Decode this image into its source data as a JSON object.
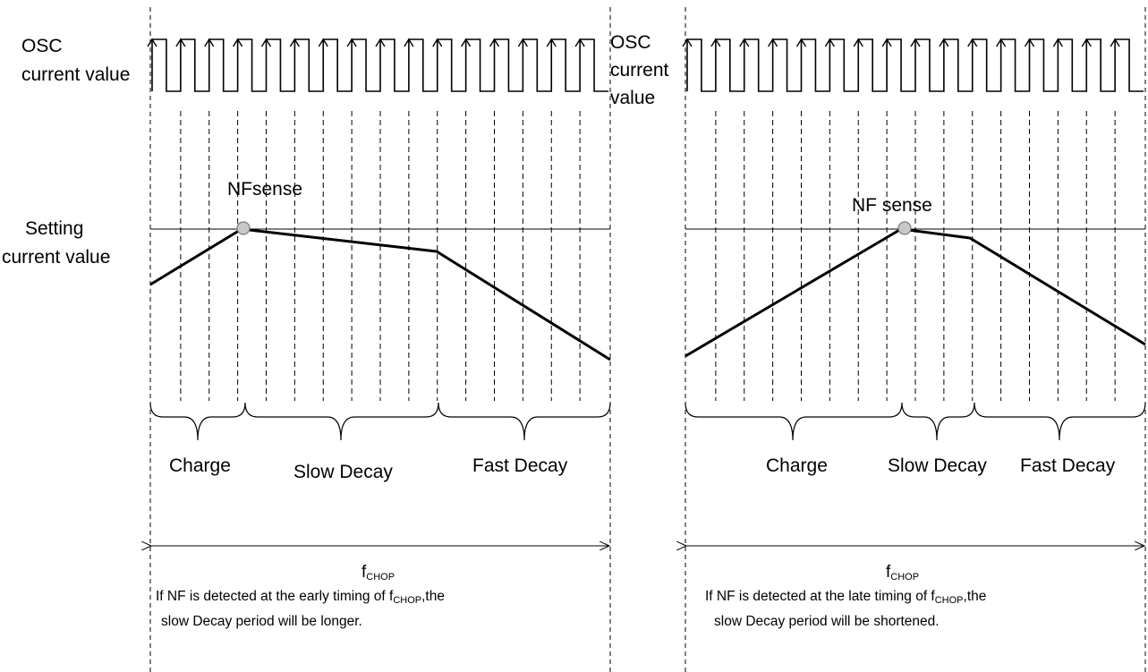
{
  "labels": {
    "osc_left": [
      "OSC",
      "current value"
    ],
    "osc_right": [
      "OSC",
      "current",
      "value"
    ],
    "setting_current": [
      "Setting",
      "current value"
    ],
    "nf_sense_left": "NFsense",
    "nf_sense_right": "NF sense",
    "charge": "Charge",
    "slow_decay": "Slow Decay",
    "fast_decay": "Fast Decay",
    "f_chop_main": "f",
    "f_chop_sub": "CHOP"
  },
  "notes": {
    "left": {
      "line1_pre": "If NF is detected at the early timing of f",
      "line1_sub": "CHOP",
      "line1_post": ",the",
      "line2": "slow Decay period will be longer."
    },
    "right": {
      "line1_pre": "If NF is detected at the late timing of f",
      "line1_sub": "CHOP",
      "line1_post": ",the",
      "line2": "slow Decay period will be shortened."
    }
  },
  "colors": {
    "line": "#000000",
    "grid_dash": "#000000",
    "sense_dot_fill": "#c8c8c8",
    "sense_dot_stroke": "#7a7a7a"
  }
}
